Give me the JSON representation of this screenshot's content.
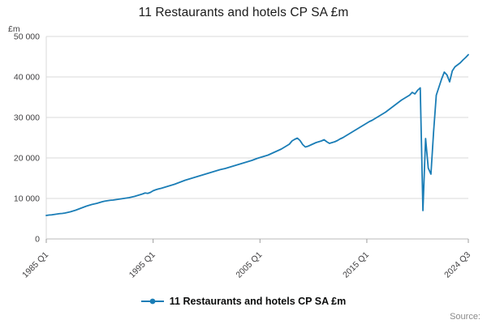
{
  "title": "11 Restaurants and hotels CP SA £m",
  "legend": {
    "label": "11 Restaurants and hotels CP SA £m"
  },
  "source_label": "Source:",
  "colors": {
    "line": "#1a7db6",
    "grid": "#d9d9d9",
    "axis": "#b9b9b9",
    "tick_text": "#414042",
    "muted_text": "#8a8a8a"
  },
  "chart_data": {
    "type": "line",
    "title": "11 Restaurants and hotels CP SA £m",
    "ylabel": "£m",
    "xlabel": "",
    "grid": "horizontal",
    "legend_position": "bottom",
    "ylim": [
      0,
      50000
    ],
    "yticks": [
      0,
      10000,
      20000,
      30000,
      40000,
      50000
    ],
    "ytick_labels": [
      "0",
      "10 000",
      "20 000",
      "30 000",
      "40 000",
      "50 000"
    ],
    "x_unit": "quarter",
    "x_start": "1985 Q1",
    "x_end": "2024 Q3",
    "xticks": [
      {
        "index": 0,
        "label": "1985 Q1"
      },
      {
        "index": 40,
        "label": "1995 Q1"
      },
      {
        "index": 80,
        "label": "2005 Q1"
      },
      {
        "index": 120,
        "label": "2015 Q1"
      },
      {
        "index": 158,
        "label": "2024 Q3"
      }
    ],
    "series": [
      {
        "name": "11 Restaurants and hotels CP SA £m",
        "color": "#1a7db6",
        "values": [
          5800,
          5900,
          5950,
          6050,
          6150,
          6250,
          6300,
          6400,
          6550,
          6700,
          6900,
          7100,
          7350,
          7600,
          7850,
          8100,
          8300,
          8500,
          8650,
          8800,
          9000,
          9200,
          9350,
          9450,
          9550,
          9600,
          9700,
          9800,
          9900,
          10000,
          10100,
          10200,
          10350,
          10500,
          10700,
          10900,
          11100,
          11350,
          11250,
          11500,
          11900,
          12150,
          12350,
          12500,
          12700,
          12900,
          13100,
          13300,
          13500,
          13750,
          14000,
          14250,
          14500,
          14700,
          14900,
          15100,
          15300,
          15500,
          15700,
          15900,
          16100,
          16300,
          16500,
          16700,
          16900,
          17100,
          17250,
          17400,
          17600,
          17800,
          18000,
          18200,
          18400,
          18600,
          18800,
          19000,
          19200,
          19400,
          19650,
          19900,
          20100,
          20300,
          20500,
          20700,
          21000,
          21300,
          21600,
          21900,
          22200,
          22600,
          23000,
          23400,
          24200,
          24600,
          24900,
          24300,
          23300,
          22700,
          22900,
          23200,
          23500,
          23800,
          24000,
          24200,
          24500,
          24000,
          23600,
          23800,
          24000,
          24300,
          24700,
          25000,
          25400,
          25800,
          26200,
          26600,
          27000,
          27400,
          27800,
          28200,
          28600,
          29000,
          29300,
          29700,
          30100,
          30500,
          30900,
          31300,
          31800,
          32300,
          32800,
          33300,
          33800,
          34300,
          34700,
          35100,
          35500,
          36200,
          35800,
          36700,
          37300,
          7000,
          24800,
          17500,
          16000,
          26500,
          35500,
          37500,
          39500,
          41200,
          40500,
          38800,
          41500,
          42500,
          43000,
          43500,
          44200,
          44800,
          45500
        ]
      }
    ]
  }
}
